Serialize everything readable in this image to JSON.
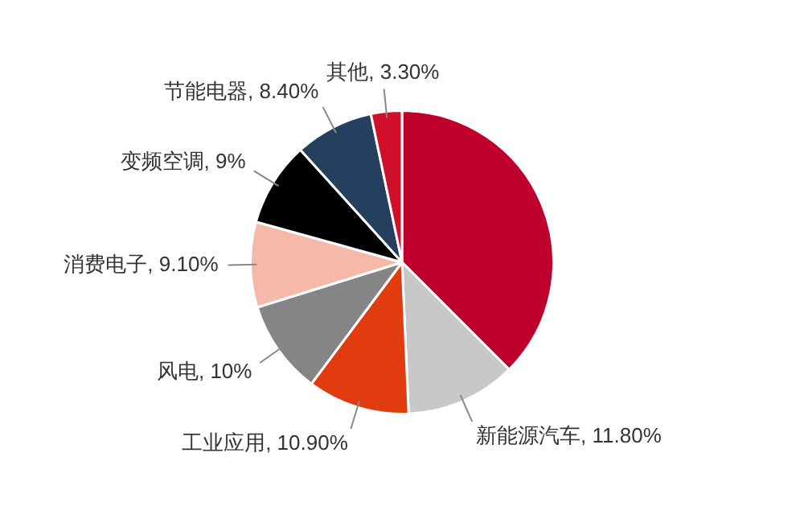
{
  "chart_data": {
    "type": "pie",
    "categories": [
      null,
      "新能源汽车",
      "工业应用",
      "风电",
      "消费电子",
      "变频空调",
      "节能电器",
      "其他"
    ],
    "values": [
      37.5,
      11.8,
      10.9,
      10,
      9.1,
      9,
      8.4,
      3.3
    ],
    "value_labels": [
      null,
      "11.80%",
      "10.90%",
      "10%",
      "9.10%",
      "9%",
      "8.40%",
      "3.30%"
    ],
    "colors": [
      "#c0002c",
      "#c8c8c8",
      "#e03c10",
      "#858585",
      "#f4b9a8",
      "#000000",
      "#25405f",
      "#d0102a"
    ]
  }
}
